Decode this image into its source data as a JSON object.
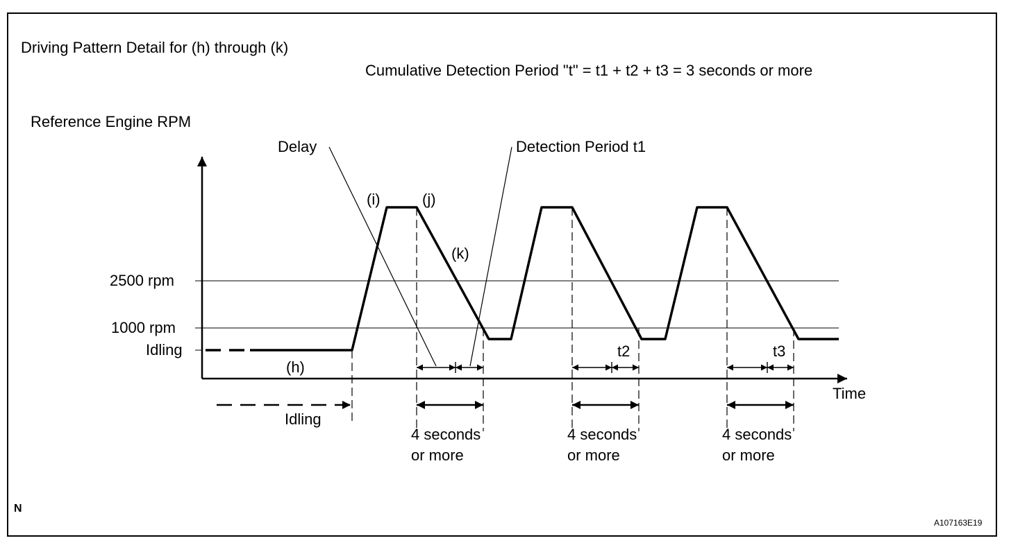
{
  "diagram": {
    "title": "Driving Pattern Detail for (h) through (k)",
    "formula": "Cumulative Detection Period \"t\" = t1 + t2 + t3 = 3 seconds or more",
    "y_axis_label": "Reference Engine RPM",
    "x_axis_label": "Time",
    "levels": {
      "rpm_2500": "2500 rpm",
      "rpm_1000": "1000 rpm",
      "idling": "Idling"
    },
    "phase_labels": {
      "h": "(h)",
      "i": "(i)",
      "j": "(j)",
      "k": "(k)"
    },
    "callouts": {
      "delay": "Delay",
      "detection_t1": "Detection Period t1"
    },
    "period_labels": {
      "t2": "t2",
      "t3": "t3"
    },
    "idling_bottom": "Idling",
    "durations": [
      {
        "line1": "4 seconds",
        "line2": "or more"
      },
      {
        "line1": "4 seconds",
        "line2": "or more"
      },
      {
        "line1": "4 seconds",
        "line2": "or more"
      }
    ],
    "corner_mark": "N",
    "figure_code": "A107163E19"
  }
}
